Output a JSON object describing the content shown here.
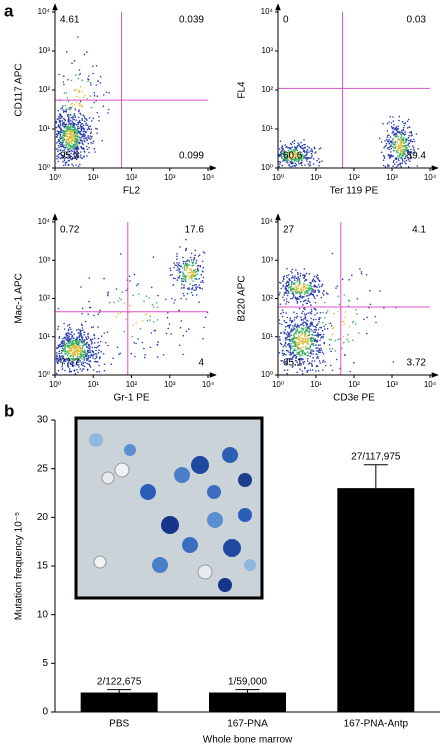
{
  "panels": [
    "a",
    "b"
  ],
  "chart_data": [
    {
      "type": "flow",
      "xlabel": "FL2",
      "ylabel": "CD117 APC",
      "log": true,
      "xlim": [
        1,
        10000
      ],
      "ylim": [
        1,
        10000
      ],
      "xticks": [
        {
          "value": 1,
          "label": "10⁰"
        },
        {
          "value": 10,
          "label": "10¹"
        },
        {
          "value": 100,
          "label": "10²"
        },
        {
          "value": 1000,
          "label": "10³"
        },
        {
          "value": 10000,
          "label": "10⁴"
        }
      ],
      "yticks": [
        {
          "value": 1,
          "label": "10⁰"
        },
        {
          "value": 10,
          "label": "10¹"
        },
        {
          "value": 100,
          "label": "10²"
        },
        {
          "value": 1000,
          "label": "10³"
        },
        {
          "value": 10000,
          "label": "10⁴"
        }
      ],
      "quadrants": [
        4.61,
        0.039,
        95.3,
        0.099
      ],
      "gates": {
        "x": 55,
        "y": 55
      },
      "gate_color": "#e050c8",
      "color": "#2a3fb0"
    },
    {
      "type": "flow",
      "xlabel": "Ter 119 PE",
      "ylabel": "FL4",
      "log": true,
      "xlim": [
        1,
        10000
      ],
      "ylim": [
        1,
        10000
      ],
      "xticks": [
        {
          "value": 1,
          "label": "10⁰"
        },
        {
          "value": 10,
          "label": "10¹"
        },
        {
          "value": 100,
          "label": "10²"
        },
        {
          "value": 1000,
          "label": "10³"
        },
        {
          "value": 10000,
          "label": "10⁴"
        }
      ],
      "yticks": [
        {
          "value": 1,
          "label": "10⁰"
        },
        {
          "value": 10,
          "label": "10¹"
        },
        {
          "value": 100,
          "label": "10²"
        },
        {
          "value": 1000,
          "label": "10³"
        },
        {
          "value": 10000,
          "label": "10⁴"
        }
      ],
      "quadrants": [
        0,
        0.03,
        60.6,
        39.4
      ],
      "gates": {
        "x": 50,
        "y": 110
      },
      "gate_color": "#e050c8",
      "color": "#2a3fb0"
    },
    {
      "type": "flow",
      "xlabel": "Gr-1 PE",
      "ylabel": "Mac-1 APC",
      "log": true,
      "xlim": [
        1,
        10000
      ],
      "ylim": [
        1,
        10000
      ],
      "xticks": [
        {
          "value": 1,
          "label": "10⁰"
        },
        {
          "value": 10,
          "label": "10¹"
        },
        {
          "value": 100,
          "label": "10²"
        },
        {
          "value": 1000,
          "label": "10³"
        },
        {
          "value": 10000,
          "label": "10⁴"
        }
      ],
      "yticks": [
        {
          "value": 1,
          "label": "10⁰"
        },
        {
          "value": 10,
          "label": "10¹"
        },
        {
          "value": 100,
          "label": "10²"
        },
        {
          "value": 1000,
          "label": "10³"
        },
        {
          "value": 10000,
          "label": "10⁴"
        }
      ],
      "quadrants": [
        0.72,
        17.6,
        77.7,
        4
      ],
      "gates": {
        "x": 80,
        "y": 45
      },
      "gate_color": "#e050c8",
      "color": "#2a3fb0"
    },
    {
      "type": "flow",
      "xlabel": "CD3e PE",
      "ylabel": "B220 APC",
      "log": true,
      "xlim": [
        1,
        10000
      ],
      "ylim": [
        1,
        10000
      ],
      "xticks": [
        {
          "value": 1,
          "label": "10⁰"
        },
        {
          "value": 10,
          "label": "10¹"
        },
        {
          "value": 100,
          "label": "10²"
        },
        {
          "value": 1000,
          "label": "10³"
        },
        {
          "value": 10000,
          "label": "10⁴"
        }
      ],
      "yticks": [
        {
          "value": 1,
          "label": "10⁰"
        },
        {
          "value": 10,
          "label": "10¹"
        },
        {
          "value": 100,
          "label": "10²"
        },
        {
          "value": 1000,
          "label": "10³"
        },
        {
          "value": 10000,
          "label": "10⁴"
        }
      ],
      "quadrants": [
        27,
        4.1,
        65.1,
        3.72
      ],
      "gates": {
        "x": 45,
        "y": 60
      },
      "gate_color": "#e050c8",
      "color": "#2a3fb0"
    },
    {
      "type": "bar",
      "ylabel": "Mutation frequency 10⁻⁵",
      "xlabel": "Whole bone marrow",
      "categories": [
        "PBS",
        "167-PNA",
        "167-PNA-Antp"
      ],
      "values": [
        2,
        2,
        23
      ],
      "errors": [
        0.3,
        0.3,
        2.4
      ],
      "annotations": [
        "2/122,675",
        "1/59,000",
        "27/117,975"
      ],
      "ylim": [
        0,
        30
      ],
      "yticks": [
        0,
        5,
        10,
        15,
        20,
        25,
        30
      ],
      "color": "#000000"
    }
  ]
}
